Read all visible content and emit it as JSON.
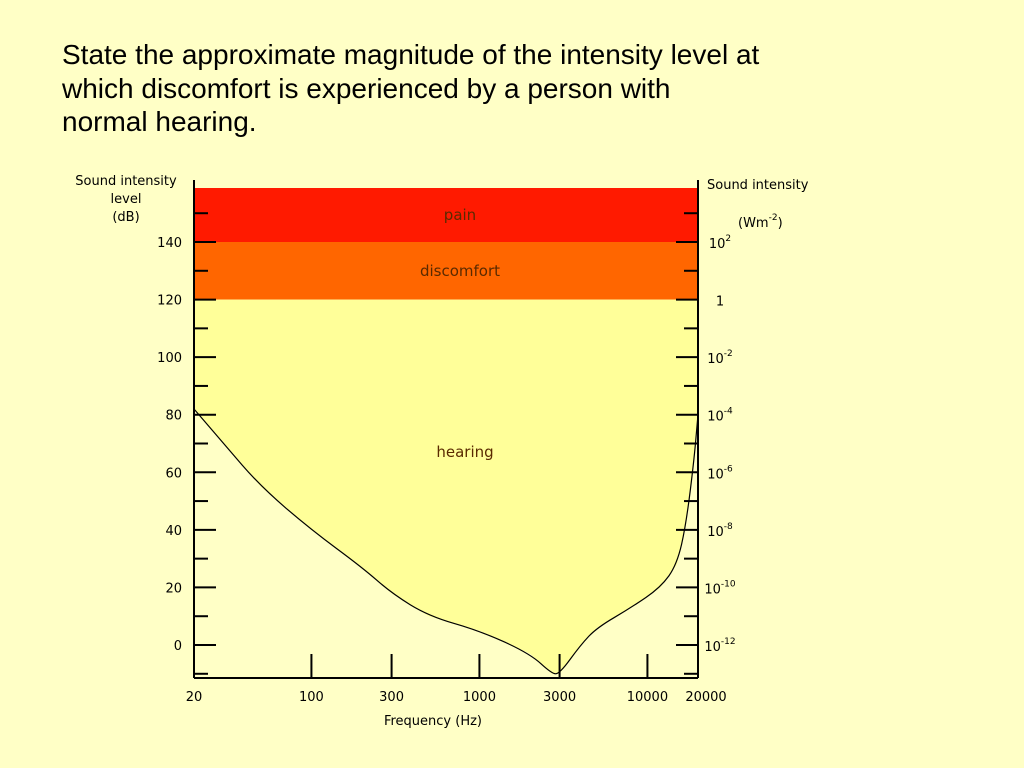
{
  "question": {
    "line1": "State the approximate magnitude of the intensity level at",
    "line2": "which discomfort is experienced by a person with",
    "line3": "normal hearing."
  },
  "chart_data": {
    "type": "area",
    "left_axis": {
      "title_lines": [
        "Sound intensity",
        "level",
        "(dB)"
      ],
      "ticks": [
        0,
        20,
        40,
        60,
        80,
        100,
        120,
        140
      ],
      "tick_labels": [
        "0",
        "20",
        "40",
        "60",
        "80",
        "100",
        "120",
        "140"
      ]
    },
    "right_axis": {
      "title": "Sound intensity",
      "unit_base": "(Wm",
      "unit_exp": "-2",
      "unit_close": ")",
      "ticks": [
        {
          "db": 140,
          "base": "10",
          "exp": "2"
        },
        {
          "db": 120,
          "base": "1",
          "exp": ""
        },
        {
          "db": 100,
          "base": "10",
          "exp": "-2"
        },
        {
          "db": 80,
          "base": "10",
          "exp": "-4"
        },
        {
          "db": 60,
          "base": "10",
          "exp": "-6"
        },
        {
          "db": 40,
          "base": "10",
          "exp": "-8"
        },
        {
          "db": 20,
          "base": "10",
          "exp": "-10"
        },
        {
          "db": 0,
          "base": "10",
          "exp": "-12"
        }
      ]
    },
    "x_axis": {
      "title": "Frequency (Hz)",
      "scale": "log",
      "ticks": [
        20,
        100,
        300,
        1000,
        3000,
        10000,
        20000
      ],
      "tick_labels": [
        "20",
        "100",
        "300",
        "1000",
        "3000",
        "10000",
        "20000"
      ]
    },
    "bands": [
      {
        "label": "pain",
        "from_db": 140,
        "to_db": 160,
        "color": "#ff1a00"
      },
      {
        "label": "discomfort",
        "from_db": 120,
        "to_db": 140,
        "color": "#ff6600"
      },
      {
        "label": "hearing",
        "from_db": null,
        "to_db": 120,
        "color": "#ffff99"
      }
    ],
    "threshold_curve": {
      "frequency_hz": [
        20,
        30,
        50,
        100,
        200,
        300,
        500,
        1000,
        2000,
        2700,
        3000,
        4000,
        5000,
        8000,
        12000,
        15000,
        17000,
        19000,
        20000
      ],
      "level_db": [
        82,
        70,
        55,
        40,
        27,
        18,
        10,
        5,
        -3,
        -10,
        -10,
        0,
        6,
        13,
        20,
        28,
        42,
        65,
        80
      ]
    },
    "db_range": [
      -10,
      160
    ],
    "freq_range": [
      20,
      20000
    ],
    "colors": {
      "background": "#ffffc6",
      "curve": "#000000",
      "axis": "#000000"
    }
  }
}
